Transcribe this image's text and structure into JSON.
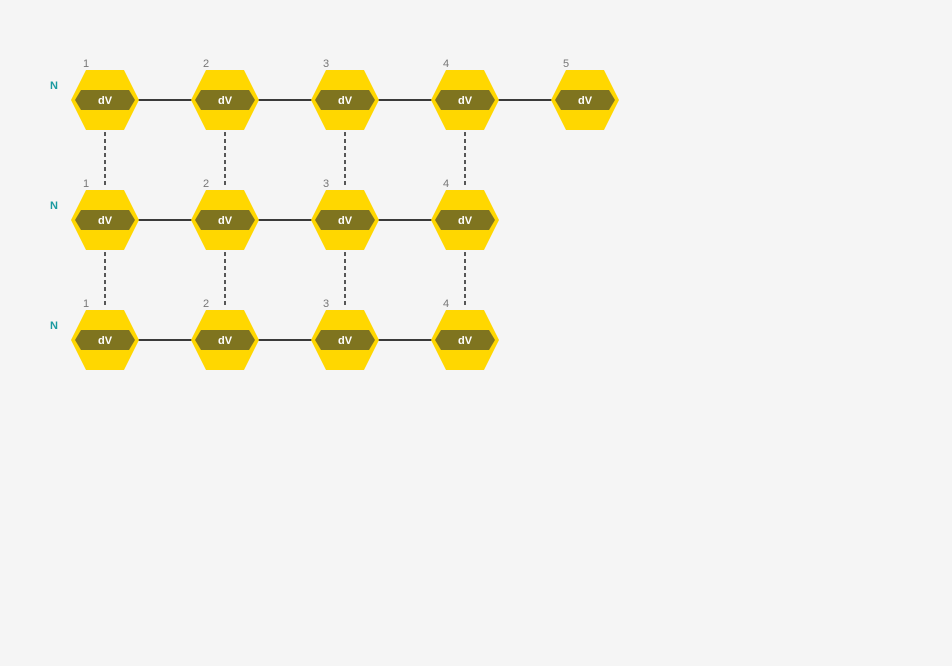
{
  "colors": {
    "background": "#f5f5f5",
    "hex_fill": "#ffd700",
    "inner_fill": "#7f741f",
    "inner_text": "#ffffff",
    "row_label": "#1a9aa0",
    "index_label": "#777777",
    "edge": "#3a3a3a",
    "link": "#222222"
  },
  "rows": [
    {
      "label": "N",
      "nodes": [
        {
          "index": "1",
          "text": "dV"
        },
        {
          "index": "2",
          "text": "dV"
        },
        {
          "index": "3",
          "text": "dV"
        },
        {
          "index": "4",
          "text": "dV"
        },
        {
          "index": "5",
          "text": "dV"
        }
      ]
    },
    {
      "label": "N",
      "nodes": [
        {
          "index": "1",
          "text": "dV"
        },
        {
          "index": "2",
          "text": "dV"
        },
        {
          "index": "3",
          "text": "dV"
        },
        {
          "index": "4",
          "text": "dV"
        }
      ]
    },
    {
      "label": "N",
      "nodes": [
        {
          "index": "1",
          "text": "dV"
        },
        {
          "index": "2",
          "text": "dV"
        },
        {
          "index": "3",
          "text": "dV"
        },
        {
          "index": "4",
          "text": "dV"
        }
      ]
    }
  ]
}
